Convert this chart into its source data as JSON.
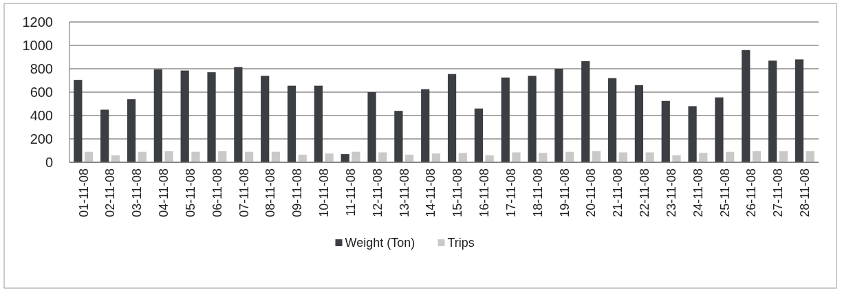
{
  "chart_data": {
    "type": "bar",
    "categories": [
      "01-11-08",
      "02-11-08",
      "03-11-08",
      "04-11-08",
      "05-11-08",
      "06-11-08",
      "07-11-08",
      "08-11-08",
      "09-11-08",
      "10-11-08",
      "11-11-08",
      "12-11-08",
      "13-11-08",
      "14-11-08",
      "15-11-08",
      "16-11-08",
      "17-11-08",
      "18-11-08",
      "19-11-08",
      "20-11-08",
      "21-11-08",
      "22-11-08",
      "23-11-08",
      "24-11-08",
      "25-11-08",
      "26-11-08",
      "27-11-08",
      "28-11-08"
    ],
    "series": [
      {
        "name": "Weight (Ton)",
        "color": "#3b3e42",
        "values": [
          705,
          450,
          540,
          795,
          785,
          770,
          815,
          740,
          655,
          655,
          70,
          600,
          440,
          625,
          755,
          460,
          725,
          740,
          800,
          865,
          720,
          660,
          525,
          480,
          555,
          960,
          870,
          880
        ]
      },
      {
        "name": "Trips",
        "color": "#c9c9c9",
        "values": [
          90,
          60,
          90,
          95,
          90,
          95,
          90,
          90,
          65,
          75,
          90,
          85,
          65,
          75,
          80,
          60,
          85,
          80,
          90,
          95,
          85,
          85,
          60,
          80,
          90,
          95,
          95,
          95
        ]
      }
    ],
    "ylim": [
      0,
      1200
    ],
    "yticks": [
      0,
      200,
      400,
      600,
      800,
      1000,
      1200
    ],
    "grid": "y",
    "legend": "bottom"
  }
}
